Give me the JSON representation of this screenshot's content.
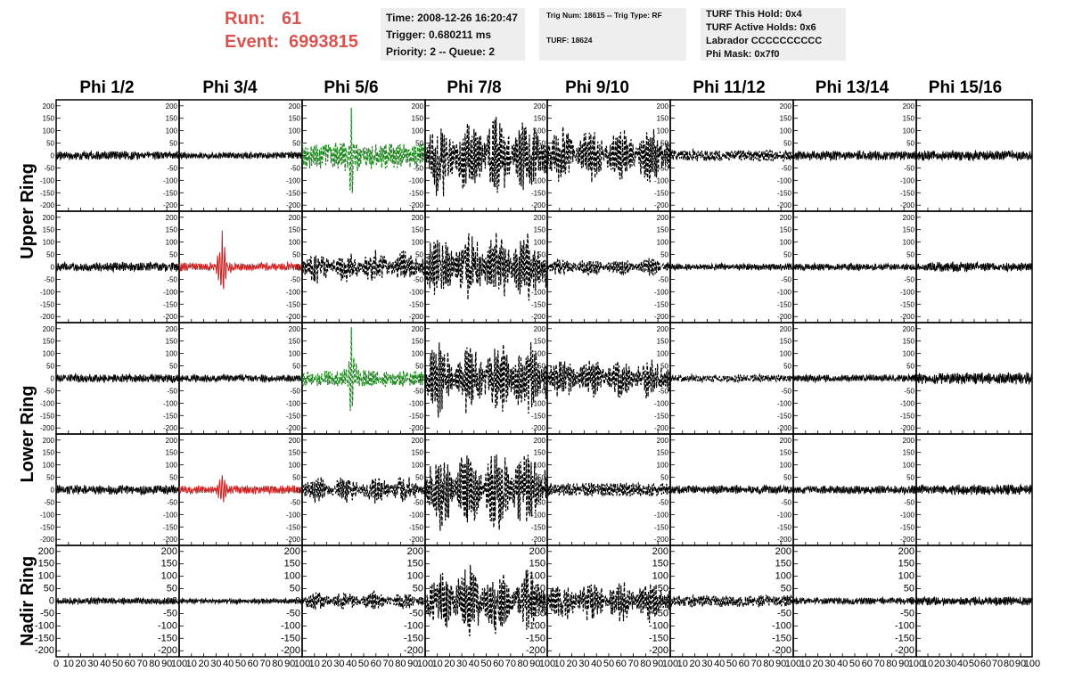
{
  "header": {
    "run_label": "Run:",
    "run_value": "61",
    "event_label": "Event:",
    "event_value": "6993815",
    "time": "Time: 2008-12-26 16:20:47",
    "trigger": "Trigger: 0.680211 ms",
    "priority": "Priority: 2 -- Queue: 2",
    "trig_num": "Trig Num: 18615 -- Trig Type: RF",
    "turf": "TURF: 18624",
    "turf_this_hold": "TURF This Hold: 0x4",
    "turf_active_holds": "TURF Active Holds: 0x6",
    "labrador": "Labrador CCCCCCCCCC",
    "phi_mask": "Phi Mask: 0x7f0"
  },
  "colors": {
    "header_red": "#d9534f",
    "trace_normal": "#000000",
    "trace_triggered": "#cc2222",
    "trace_green": "#228822"
  },
  "chart_data": {
    "type": "line",
    "columns": [
      "Phi 1/2",
      "Phi 3/4",
      "Phi 5/6",
      "Phi 7/8",
      "Phi 9/10",
      "Phi 11/12",
      "Phi 13/14",
      "Phi 15/16"
    ],
    "ring_labels": [
      "Upper Ring",
      "Lower Ring",
      "Nadir Ring"
    ],
    "ylim": [
      -210,
      210
    ],
    "xlim": [
      0,
      100
    ],
    "y_ticks": [
      "200",
      "150",
      "100",
      "50",
      "0",
      "-50",
      "-100",
      "-150",
      "-200"
    ],
    "x_ticks": [
      "0",
      "10",
      "20",
      "30",
      "40",
      "50",
      "60",
      "70",
      "80",
      "90",
      "100"
    ],
    "rows": [
      [
        {
          "amp": 18,
          "style": "solid",
          "color": "trace_normal"
        },
        {
          "amp": 15,
          "style": "solid",
          "color": "trace_normal"
        },
        {
          "amp": 55,
          "style": "dashed",
          "color": "trace_green",
          "spike": {
            "x": 40,
            "amp": 175
          }
        },
        {
          "amp": 180,
          "style": "dashed",
          "color": "trace_normal",
          "packets": true
        },
        {
          "amp": 120,
          "style": "dashed",
          "color": "trace_normal",
          "packets": true
        },
        {
          "amp": 25,
          "style": "dashed",
          "color": "trace_normal"
        },
        {
          "amp": 20,
          "style": "solid",
          "color": "trace_normal"
        },
        {
          "amp": 22,
          "style": "solid",
          "color": "trace_normal"
        }
      ],
      [
        {
          "amp": 20,
          "style": "solid",
          "color": "trace_normal"
        },
        {
          "amp": 18,
          "style": "solid",
          "color": "trace_triggered",
          "spike": {
            "x": 35,
            "amp": 150
          }
        },
        {
          "amp": 70,
          "style": "dashed",
          "color": "trace_normal",
          "packets": true
        },
        {
          "amp": 150,
          "style": "dashed",
          "color": "trace_normal",
          "packets": true
        },
        {
          "amp": 40,
          "style": "dashed",
          "color": "trace_normal",
          "packets": true
        },
        {
          "amp": 15,
          "style": "solid",
          "color": "trace_normal"
        },
        {
          "amp": 15,
          "style": "solid",
          "color": "trace_normal"
        },
        {
          "amp": 20,
          "style": "solid",
          "color": "trace_normal"
        }
      ],
      [
        {
          "amp": 18,
          "style": "solid",
          "color": "trace_normal"
        },
        {
          "amp": 15,
          "style": "solid",
          "color": "trace_normal"
        },
        {
          "amp": 35,
          "style": "dashed",
          "color": "trace_green",
          "spike": {
            "x": 40,
            "amp": 180
          }
        },
        {
          "amp": 160,
          "style": "dashed",
          "color": "trace_normal",
          "packets": true
        },
        {
          "amp": 90,
          "style": "dashed",
          "color": "trace_normal",
          "packets": true
        },
        {
          "amp": 15,
          "style": "dashed",
          "color": "trace_normal"
        },
        {
          "amp": 15,
          "style": "solid",
          "color": "trace_normal"
        },
        {
          "amp": 25,
          "style": "solid",
          "color": "trace_normal"
        }
      ],
      [
        {
          "amp": 20,
          "style": "solid",
          "color": "trace_normal"
        },
        {
          "amp": 18,
          "style": "solid",
          "color": "trace_triggered",
          "spike": {
            "x": 35,
            "amp": 70
          }
        },
        {
          "amp": 60,
          "style": "dashed",
          "color": "trace_normal",
          "packets": true
        },
        {
          "amp": 170,
          "style": "dashed",
          "color": "trace_normal",
          "packets": true
        },
        {
          "amp": 30,
          "style": "dashed",
          "color": "trace_normal"
        },
        {
          "amp": 18,
          "style": "solid",
          "color": "trace_normal"
        },
        {
          "amp": 18,
          "style": "solid",
          "color": "trace_normal"
        },
        {
          "amp": 22,
          "style": "solid",
          "color": "trace_normal"
        }
      ],
      [
        {
          "amp": 15,
          "style": "solid",
          "color": "trace_normal"
        },
        {
          "amp": 12,
          "style": "solid",
          "color": "trace_normal"
        },
        {
          "amp": 40,
          "style": "dashed",
          "color": "trace_normal",
          "packets": true
        },
        {
          "amp": 150,
          "style": "dashed",
          "color": "trace_normal",
          "packets": true
        },
        {
          "amp": 90,
          "style": "dashed",
          "color": "trace_normal",
          "packets": true
        },
        {
          "amp": 25,
          "style": "dashed",
          "color": "trace_normal"
        },
        {
          "amp": 15,
          "style": "solid",
          "color": "trace_normal"
        },
        {
          "amp": 18,
          "style": "solid",
          "color": "trace_normal"
        }
      ]
    ]
  }
}
